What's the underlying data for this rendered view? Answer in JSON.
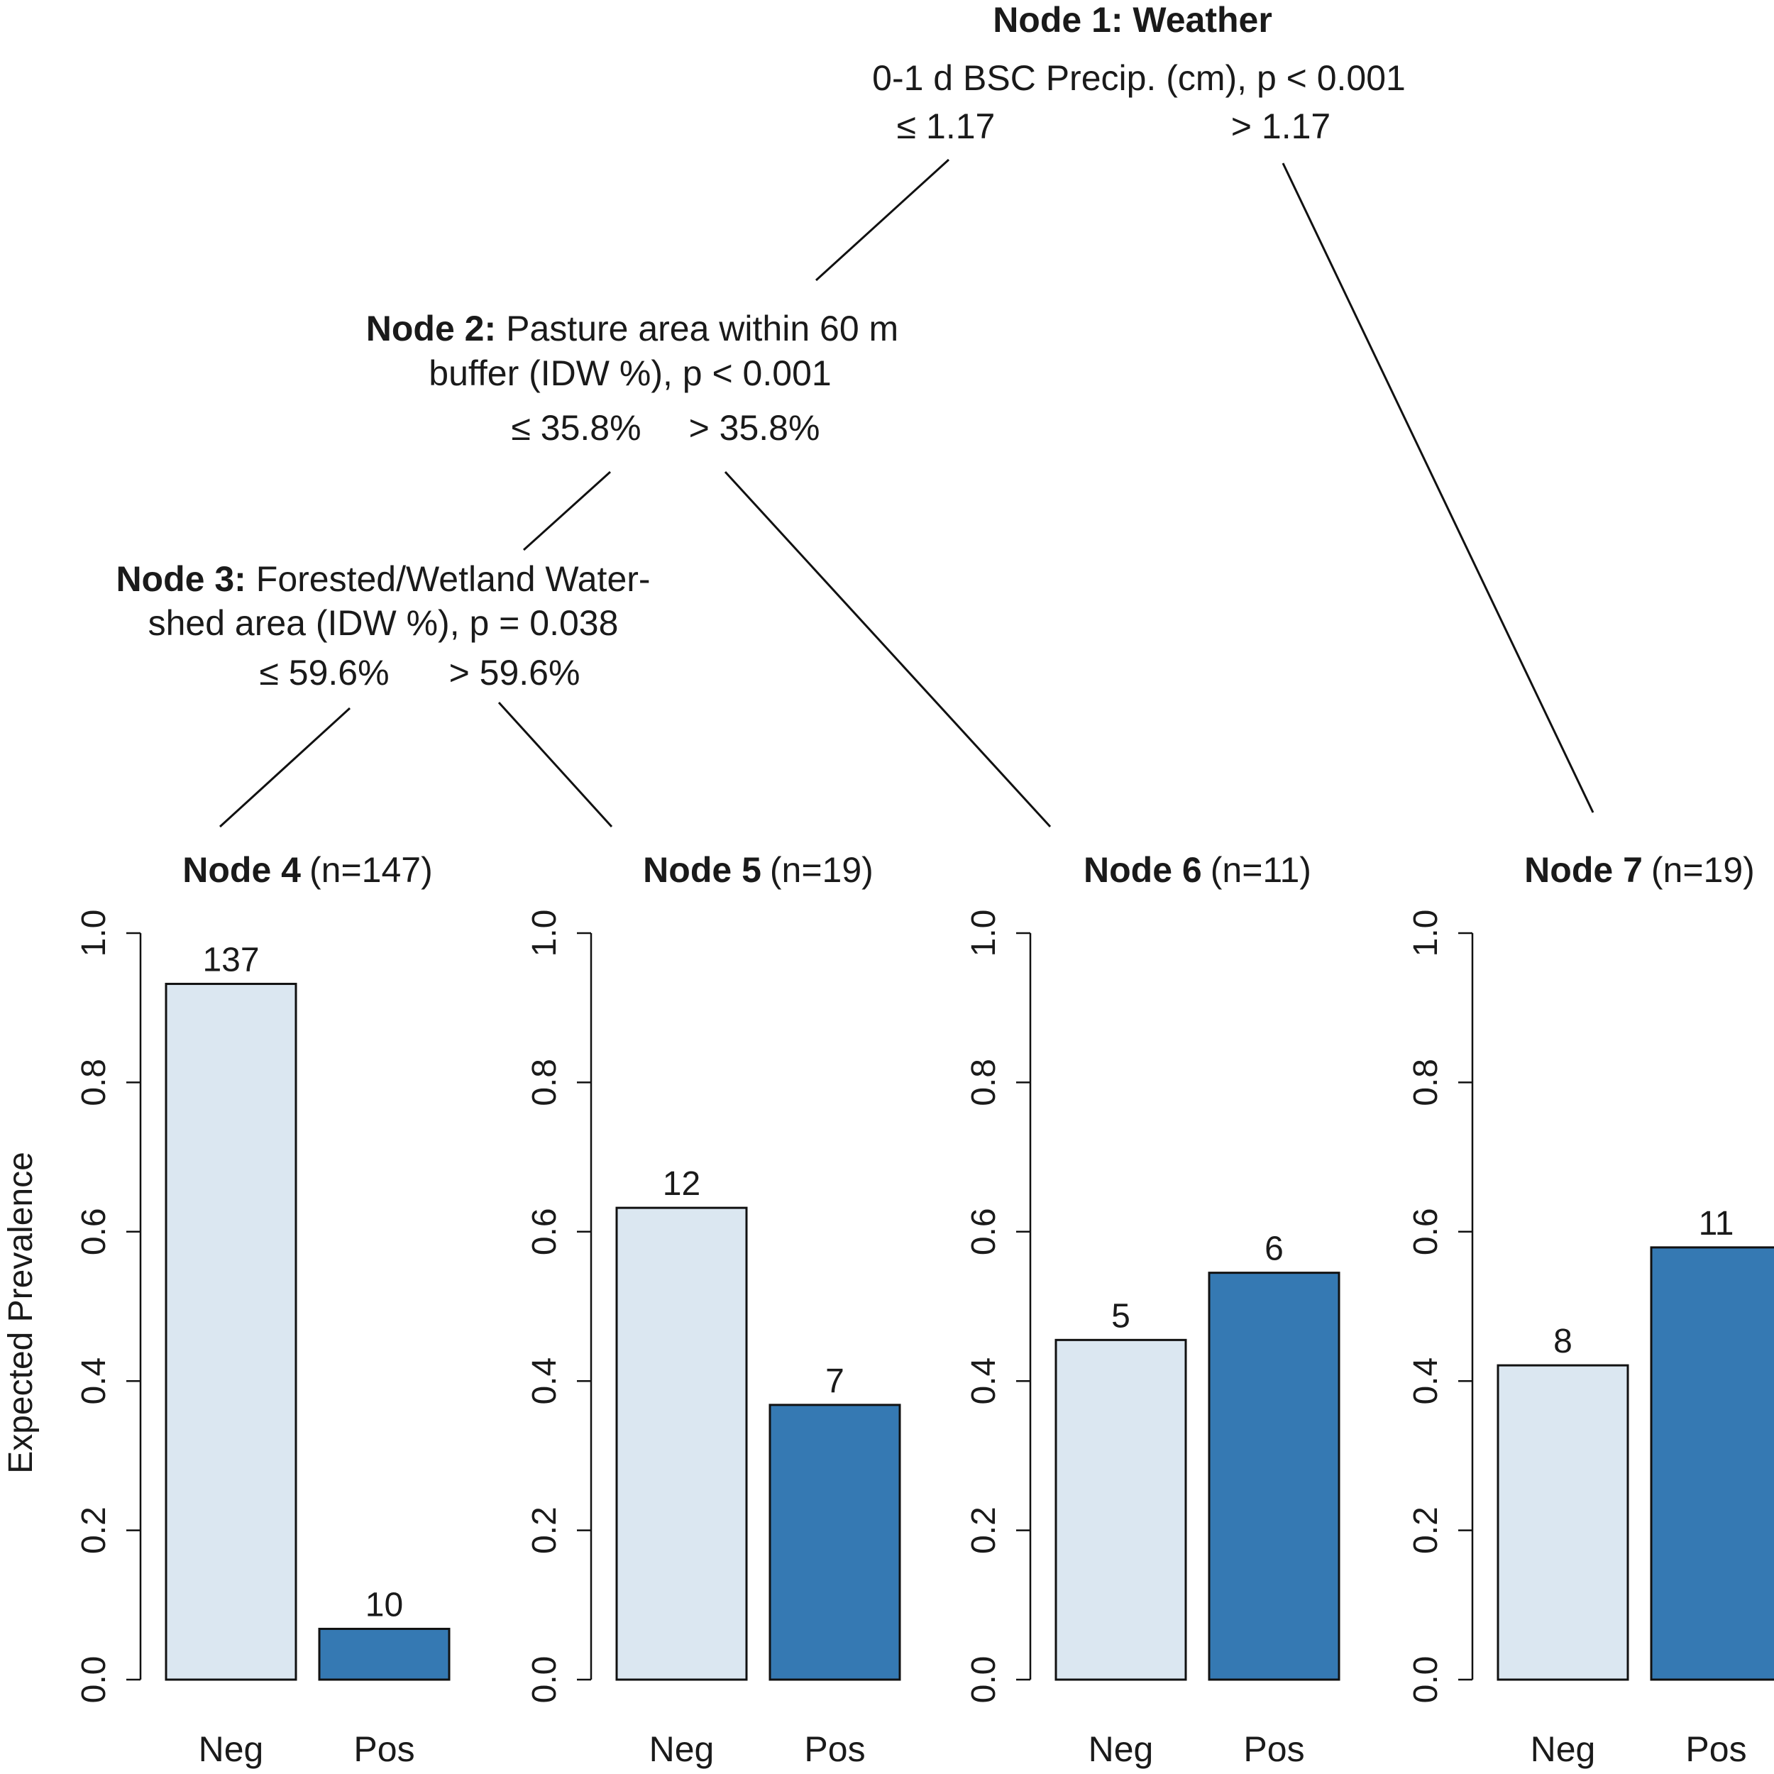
{
  "tree": {
    "node1": {
      "title": "Node 1: Weather",
      "variable": "0-1 d BSC Precip. (cm), p < 0.001",
      "left_split": "≤ 1.17",
      "right_split": "> 1.17"
    },
    "node2": {
      "title": "Node 2:",
      "line1": "Pasture area within 60 m",
      "line2": "buffer (IDW %), p < 0.001",
      "left_split": "≤ 35.8%",
      "right_split": "> 35.8%"
    },
    "node3": {
      "title": "Node 3:",
      "line1": "Forested/Wetland Water-",
      "line2": "shed area (IDW %), p = 0.038",
      "left_split": "≤ 59.6%",
      "right_split": "> 59.6%"
    }
  },
  "chart_data": {
    "type": "bar",
    "ylabel": "Expected Prevalence",
    "ylim": [
      0,
      1
    ],
    "yticks": [
      "0.0",
      "0.2",
      "0.4",
      "0.6",
      "0.8",
      "1.0"
    ],
    "categories": [
      "Neg",
      "Pos"
    ],
    "colors": {
      "Neg": "#dbe7f1",
      "Pos": "#3579b3"
    },
    "panels": [
      {
        "title": "Node 4",
        "n": "(n=147)",
        "values": [
          0.932,
          0.068
        ],
        "labels": [
          "137",
          "10"
        ]
      },
      {
        "title": "Node 5",
        "n": "(n=19)",
        "values": [
          0.632,
          0.368
        ],
        "labels": [
          "12",
          "7"
        ]
      },
      {
        "title": "Node 6",
        "n": "(n=11)",
        "values": [
          0.455,
          0.545
        ],
        "labels": [
          "5",
          "6"
        ]
      },
      {
        "title": "Node 7",
        "n": "(n=19)",
        "values": [
          0.421,
          0.579
        ],
        "labels": [
          "8",
          "11"
        ]
      }
    ]
  }
}
